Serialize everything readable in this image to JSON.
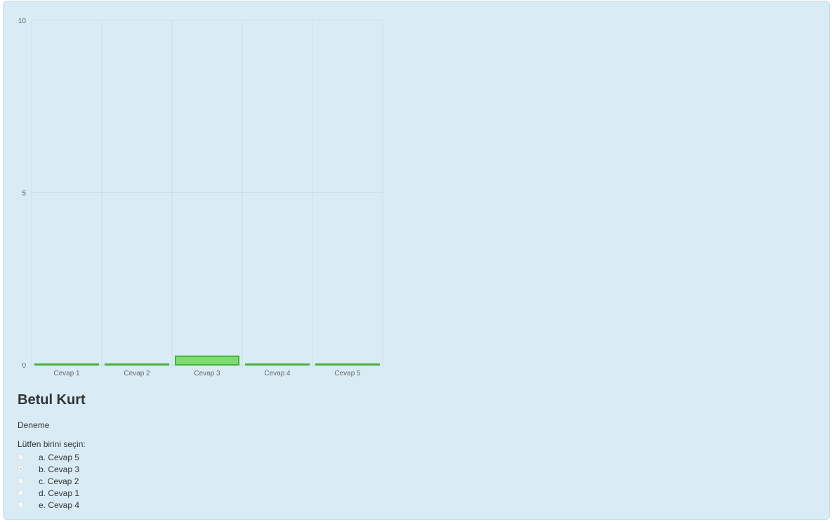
{
  "chart_data": {
    "type": "bar",
    "categories": [
      "Cevap 1",
      "Cevap 2",
      "Cevap 3",
      "Cevap 4",
      "Cevap 5"
    ],
    "values": [
      0,
      0,
      0.25,
      0,
      0
    ],
    "ylim": [
      0,
      10
    ],
    "yticks": [
      "0",
      "5",
      "10"
    ],
    "grid": true,
    "legend": "none",
    "colors": {
      "bar_fill": "#7ddc6f",
      "bar_stroke": "#4cae3c",
      "grid": "#c9e0ea"
    }
  },
  "question": {
    "title": "Betul Kurt",
    "text": "Deneme",
    "prompt": "Lütfen birini seçin:",
    "options": [
      {
        "label": "a. Cevap 5",
        "checked": false
      },
      {
        "label": "b. Cevap 3",
        "checked": true
      },
      {
        "label": "c. Cevap 2",
        "checked": false
      },
      {
        "label": "d. Cevap 1",
        "checked": false
      },
      {
        "label": "e. Cevap 4",
        "checked": false
      }
    ]
  }
}
